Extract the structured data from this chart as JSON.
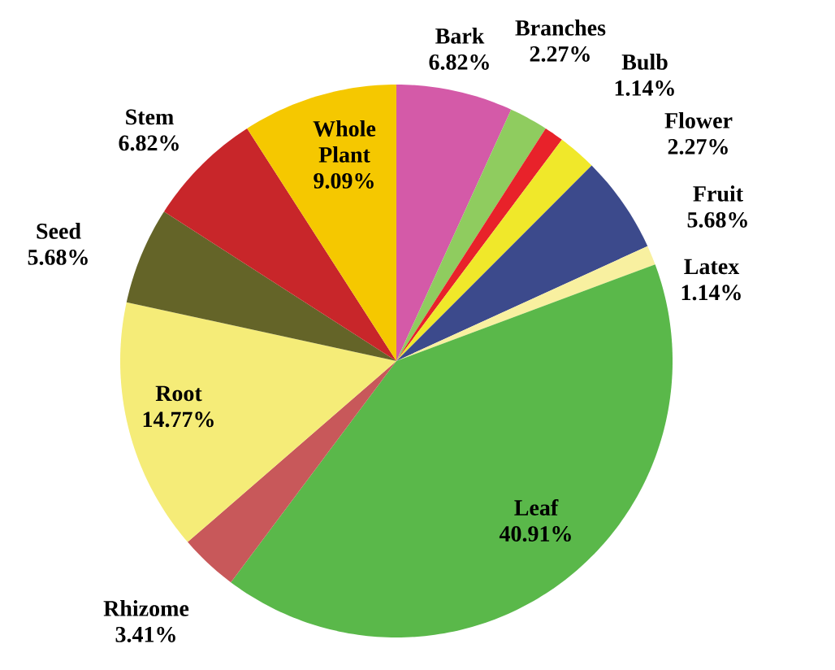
{
  "chart_data": {
    "type": "pie",
    "categories": [
      "Bark",
      "Branches",
      "Bulb",
      "Flower",
      "Fruit",
      "Latex",
      "Leaf",
      "Rhizome",
      "Root",
      "Seed",
      "Stem",
      "Whole Plant"
    ],
    "values": [
      6.82,
      2.27,
      1.14,
      2.27,
      5.68,
      1.14,
      40.91,
      3.41,
      14.77,
      5.68,
      6.82,
      9.09
    ],
    "value_labels": [
      "6.82%",
      "2.27%",
      "1.14%",
      "2.27%",
      "5.68%",
      "1.14%",
      "40.91%",
      "3.41%",
      "14.77%",
      "5.68%",
      "6.82%",
      "9.09%"
    ],
    "colors": [
      "#d45aa8",
      "#8fcc5f",
      "#e8222a",
      "#f0e82a",
      "#3c4a8c",
      "#f8f0a0",
      "#5ab84a",
      "#c8585a",
      "#f5ec78",
      "#646428",
      "#c8262a",
      "#f5c800"
    ]
  }
}
